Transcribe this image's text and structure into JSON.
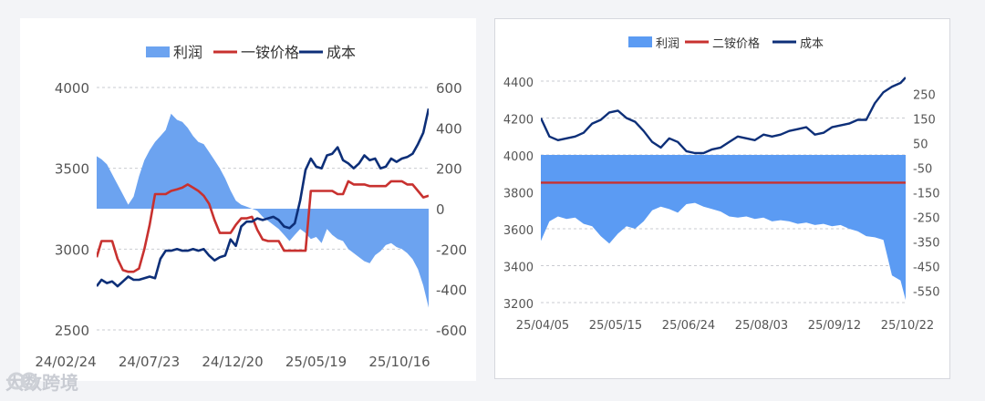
{
  "watermark": {
    "text": "大数跨境"
  },
  "chart_data": [
    {
      "type": "line",
      "legend": [
        "利润",
        "一铵价格",
        "成本"
      ],
      "x_ticks": [
        "24/02/24",
        "24/07/23",
        "24/12/20",
        "25/05/19",
        "25/10/16"
      ],
      "left_axis": {
        "ylim": [
          2500,
          4000
        ],
        "ticks": [
          2500,
          3000,
          3500,
          4000
        ]
      },
      "right_axis": {
        "ylim": [
          -600,
          600
        ],
        "ticks": [
          -600,
          -400,
          -200,
          0,
          200,
          400,
          600
        ]
      },
      "grid": true,
      "series": [
        {
          "name": "利润",
          "type": "area",
          "axis": "right",
          "color": "#6ca3f0",
          "x": [
            "2024-02-24",
            "2024-03-04",
            "2024-03-14",
            "2024-03-24",
            "2024-04-03",
            "2024-04-13",
            "2024-04-23",
            "2024-05-03",
            "2024-05-13",
            "2024-05-23",
            "2024-06-02",
            "2024-06-12",
            "2024-06-22",
            "2024-07-02",
            "2024-07-12",
            "2024-07-23",
            "2024-08-02",
            "2024-08-12",
            "2024-08-22",
            "2024-09-01",
            "2024-09-11",
            "2024-09-21",
            "2024-10-01",
            "2024-10-11",
            "2024-10-21",
            "2024-10-31",
            "2024-11-10",
            "2024-11-20",
            "2024-11-30",
            "2024-12-10",
            "2024-12-20",
            "2024-12-30",
            "2025-01-09",
            "2025-01-19",
            "2025-01-29",
            "2025-02-08",
            "2025-02-18",
            "2025-02-28",
            "2025-03-10",
            "2025-03-20",
            "2025-03-30",
            "2025-04-09",
            "2025-04-19",
            "2025-04-29",
            "2025-05-09",
            "2025-05-19",
            "2025-05-29",
            "2025-06-08",
            "2025-06-18",
            "2025-06-28",
            "2025-07-08",
            "2025-07-18",
            "2025-07-28",
            "2025-08-07",
            "2025-08-17",
            "2025-08-27",
            "2025-09-06",
            "2025-09-16",
            "2025-09-26",
            "2025-10-06",
            "2025-10-16",
            "2025-10-26",
            "2025-11-05"
          ],
          "values": [
            260,
            245,
            220,
            170,
            120,
            70,
            20,
            60,
            160,
            240,
            290,
            330,
            360,
            390,
            470,
            440,
            430,
            400,
            360,
            330,
            320,
            280,
            240,
            200,
            150,
            90,
            40,
            20,
            10,
            0,
            -10,
            -40,
            -60,
            -80,
            -100,
            -130,
            -160,
            -130,
            -100,
            -120,
            -150,
            -140,
            -170,
            -100,
            -130,
            -150,
            -160,
            -200,
            -220,
            -240,
            -260,
            -270,
            -230,
            -210,
            -180,
            -170,
            -190,
            -200,
            -220,
            -250,
            -300,
            -380,
            -490
          ]
        },
        {
          "name": "一铵价格",
          "type": "line",
          "axis": "left",
          "color": "#c8312f",
          "x": [
            "2024-02-24",
            "2024-03-04",
            "2024-03-14",
            "2024-03-24",
            "2024-04-03",
            "2024-04-13",
            "2024-04-23",
            "2024-05-03",
            "2024-05-13",
            "2024-05-23",
            "2024-06-02",
            "2024-06-12",
            "2024-06-22",
            "2024-07-02",
            "2024-07-12",
            "2024-07-23",
            "2024-08-02",
            "2024-08-12",
            "2024-08-22",
            "2024-09-01",
            "2024-09-11",
            "2024-09-21",
            "2024-10-01",
            "2024-10-11",
            "2024-10-21",
            "2024-10-31",
            "2024-11-10",
            "2024-11-20",
            "2024-11-30",
            "2024-12-10",
            "2024-12-20",
            "2024-12-30",
            "2025-01-09",
            "2025-01-19",
            "2025-01-29",
            "2025-02-08",
            "2025-02-18",
            "2025-02-28",
            "2025-03-10",
            "2025-03-20",
            "2025-03-30",
            "2025-04-09",
            "2025-04-19",
            "2025-04-29",
            "2025-05-09",
            "2025-05-19",
            "2025-05-29",
            "2025-06-08",
            "2025-06-18",
            "2025-06-28",
            "2025-07-08",
            "2025-07-18",
            "2025-07-28",
            "2025-08-07",
            "2025-08-17",
            "2025-08-27",
            "2025-09-06",
            "2025-09-16",
            "2025-09-26",
            "2025-10-06",
            "2025-10-16",
            "2025-10-26",
            "2025-11-05"
          ],
          "values": [
            2950,
            3050,
            3050,
            3050,
            2940,
            2870,
            2860,
            2860,
            2880,
            3000,
            3150,
            3340,
            3340,
            3340,
            3360,
            3370,
            3380,
            3400,
            3380,
            3360,
            3330,
            3280,
            3180,
            3100,
            3100,
            3100,
            3150,
            3190,
            3190,
            3200,
            3120,
            3060,
            3050,
            3050,
            3050,
            2990,
            2990,
            2990,
            2990,
            2990,
            3360,
            3360,
            3360,
            3360,
            3360,
            3340,
            3340,
            3420,
            3400,
            3400,
            3400,
            3390,
            3390,
            3390,
            3390,
            3420,
            3420,
            3420,
            3400,
            3400,
            3360,
            3320,
            3330
          ]
        },
        {
          "name": "成本",
          "type": "line",
          "axis": "left",
          "color": "#0d2f78",
          "x": [
            "2024-02-24",
            "2024-03-04",
            "2024-03-14",
            "2024-03-24",
            "2024-04-03",
            "2024-04-13",
            "2024-04-23",
            "2024-05-03",
            "2024-05-13",
            "2024-05-23",
            "2024-06-02",
            "2024-06-12",
            "2024-06-22",
            "2024-07-02",
            "2024-07-12",
            "2024-07-23",
            "2024-08-02",
            "2024-08-12",
            "2024-08-22",
            "2024-09-01",
            "2024-09-11",
            "2024-09-21",
            "2024-10-01",
            "2024-10-11",
            "2024-10-21",
            "2024-10-31",
            "2024-11-10",
            "2024-11-20",
            "2024-11-30",
            "2024-12-10",
            "2024-12-20",
            "2024-12-30",
            "2025-01-09",
            "2025-01-19",
            "2025-01-29",
            "2025-02-08",
            "2025-02-18",
            "2025-02-28",
            "2025-03-10",
            "2025-03-20",
            "2025-03-30",
            "2025-04-09",
            "2025-04-19",
            "2025-04-29",
            "2025-05-09",
            "2025-05-19",
            "2025-05-29",
            "2025-06-08",
            "2025-06-18",
            "2025-06-28",
            "2025-07-08",
            "2025-07-18",
            "2025-07-28",
            "2025-08-07",
            "2025-08-17",
            "2025-08-27",
            "2025-09-06",
            "2025-09-16",
            "2025-09-26",
            "2025-10-06",
            "2025-10-16",
            "2025-10-26",
            "2025-11-05"
          ],
          "values": [
            2770,
            2810,
            2790,
            2800,
            2770,
            2800,
            2830,
            2810,
            2810,
            2820,
            2830,
            2820,
            2940,
            2990,
            2990,
            3000,
            2990,
            2990,
            3000,
            2990,
            3000,
            2960,
            2930,
            2950,
            2960,
            3060,
            3020,
            3140,
            3170,
            3170,
            3190,
            3180,
            3190,
            3200,
            3180,
            3140,
            3130,
            3160,
            3300,
            3490,
            3560,
            3510,
            3500,
            3580,
            3590,
            3630,
            3550,
            3530,
            3500,
            3530,
            3580,
            3550,
            3560,
            3500,
            3510,
            3560,
            3540,
            3560,
            3570,
            3590,
            3650,
            3720,
            3870
          ]
        }
      ]
    },
    {
      "type": "line",
      "legend": [
        "利润",
        "二铵价格",
        "成本"
      ],
      "x_ticks": [
        "25/04/05",
        "25/05/15",
        "25/06/24",
        "25/08/03",
        "25/09/12",
        "25/10/22"
      ],
      "left_axis": {
        "ylim": [
          3200,
          4400
        ],
        "ticks": [
          3200,
          3400,
          3600,
          3800,
          4000,
          4200,
          4400
        ]
      },
      "right_axis": {
        "ylim": [
          -600,
          300
        ],
        "ticks": [
          -550,
          -450,
          -350,
          -250,
          -150,
          -50,
          50,
          150,
          250
        ]
      },
      "grid": true,
      "series": [
        {
          "name": "利润",
          "type": "area",
          "axis": "right",
          "color": "#5b9bf3",
          "x": [
            "2025-04-01",
            "2025-04-06",
            "2025-04-11",
            "2025-04-16",
            "2025-04-21",
            "2025-04-26",
            "2025-05-01",
            "2025-05-06",
            "2025-05-11",
            "2025-05-16",
            "2025-05-21",
            "2025-05-26",
            "2025-05-31",
            "2025-06-05",
            "2025-06-10",
            "2025-06-15",
            "2025-06-20",
            "2025-06-25",
            "2025-06-30",
            "2025-07-05",
            "2025-07-10",
            "2025-07-15",
            "2025-07-20",
            "2025-07-25",
            "2025-07-30",
            "2025-08-04",
            "2025-08-09",
            "2025-08-14",
            "2025-08-19",
            "2025-08-24",
            "2025-08-29",
            "2025-09-03",
            "2025-09-08",
            "2025-09-13",
            "2025-09-18",
            "2025-09-23",
            "2025-09-28",
            "2025-10-03",
            "2025-10-08",
            "2025-10-13",
            "2025-10-18",
            "2025-10-23",
            "2025-10-28",
            "2025-10-31"
          ],
          "values": [
            -350,
            -270,
            -250,
            -260,
            -255,
            -280,
            -290,
            -330,
            -360,
            -320,
            -290,
            -300,
            -270,
            -225,
            -210,
            -220,
            -235,
            -200,
            -195,
            -210,
            -220,
            -230,
            -250,
            -255,
            -250,
            -260,
            -255,
            -270,
            -265,
            -270,
            -280,
            -275,
            -285,
            -280,
            -290,
            -285,
            -300,
            -310,
            -330,
            -335,
            -345,
            -490,
            -510,
            -590
          ]
        },
        {
          "name": "二铵价格",
          "type": "line",
          "axis": "left",
          "color": "#c8312f",
          "x": [
            "2025-04-01",
            "2025-10-31"
          ],
          "values": [
            3850,
            3850
          ]
        },
        {
          "name": "成本",
          "type": "line",
          "axis": "left",
          "color": "#0d2f78",
          "x": [
            "2025-04-01",
            "2025-04-06",
            "2025-04-11",
            "2025-04-16",
            "2025-04-21",
            "2025-04-26",
            "2025-05-01",
            "2025-05-06",
            "2025-05-11",
            "2025-05-16",
            "2025-05-21",
            "2025-05-26",
            "2025-05-31",
            "2025-06-05",
            "2025-06-10",
            "2025-06-15",
            "2025-06-20",
            "2025-06-25",
            "2025-06-30",
            "2025-07-05",
            "2025-07-10",
            "2025-07-15",
            "2025-07-20",
            "2025-07-25",
            "2025-07-30",
            "2025-08-04",
            "2025-08-09",
            "2025-08-14",
            "2025-08-19",
            "2025-08-24",
            "2025-08-29",
            "2025-09-03",
            "2025-09-08",
            "2025-09-13",
            "2025-09-18",
            "2025-09-23",
            "2025-09-28",
            "2025-10-03",
            "2025-10-08",
            "2025-10-13",
            "2025-10-18",
            "2025-10-23",
            "2025-10-28",
            "2025-10-31"
          ],
          "values": [
            4200,
            4100,
            4080,
            4090,
            4100,
            4120,
            4170,
            4190,
            4230,
            4240,
            4200,
            4180,
            4130,
            4070,
            4040,
            4090,
            4070,
            4020,
            4010,
            4010,
            4030,
            4040,
            4070,
            4100,
            4090,
            4080,
            4110,
            4100,
            4110,
            4130,
            4140,
            4150,
            4110,
            4120,
            4150,
            4160,
            4170,
            4190,
            4190,
            4280,
            4340,
            4370,
            4390,
            4420
          ]
        }
      ]
    }
  ]
}
